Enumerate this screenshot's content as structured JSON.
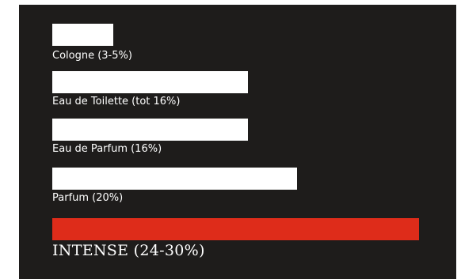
{
  "chart_data": {
    "type": "bar",
    "orientation": "horizontal",
    "categories": [
      "Cologne (3-5%)",
      "Eau de Toilette (tot 16%)",
      "Eau de Parfum (16%)",
      "Parfum (20%)",
      "INTENSE (24-30%)"
    ],
    "values": [
      5,
      16,
      16,
      20,
      30
    ],
    "xlim": [
      0,
      30
    ],
    "colors": [
      "#ffffff",
      "#ffffff",
      "#ffffff",
      "#ffffff",
      "#de2c1a"
    ],
    "grid": false,
    "legend": "none",
    "background": "#1e1c1b"
  }
}
